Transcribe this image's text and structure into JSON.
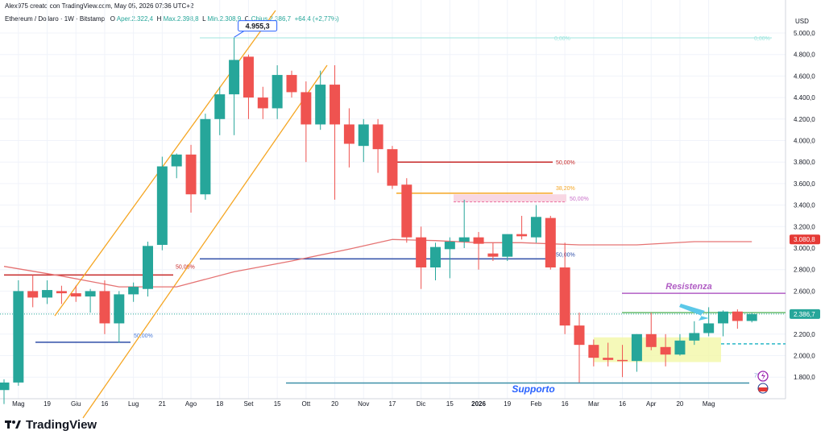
{
  "header": {
    "caption": "Alex975 creato con TradingView.com, May 05, 2026 07:36 UTC+2",
    "symbol": "Ethereum / Dollaro · 1W · Bitstamp",
    "ohlc": {
      "o_key": "O",
      "o_val": "Aper.2.322,4",
      "h_key": "H",
      "h_val": "Max.2.398,8",
      "l_key": "L",
      "l_val": "Min.2.308,9",
      "c_key": "C",
      "c_val": "Chius.2.386,7",
      "change": "+64,4 (+2,77%)"
    }
  },
  "footer": {
    "brand": "TradingView"
  },
  "colors": {
    "up": "#26a69a",
    "down": "#ef5350",
    "channel": "#f5a623",
    "ma": "#e57373",
    "support": "#3d8fa8",
    "resistance": "#b05dc4",
    "blue_line": "#2f4ea8",
    "green_line": "#66bb6a"
  },
  "chart_data": {
    "type": "candlestick",
    "currency": "USD",
    "y_ticks": [
      "1.800,0",
      "2.000,0",
      "2.200,0",
      "2.400,0",
      "2.600,0",
      "2.800,0",
      "3.000,0",
      "3.200,0",
      "3.400,0",
      "3.600,0",
      "3.800,0",
      "4.000,0",
      "4.200,0",
      "4.400,0",
      "4.600,0",
      "4.800,0",
      "5.000,0"
    ],
    "y_tick_values": [
      1800,
      2000,
      2200,
      2400,
      2600,
      2800,
      3000,
      3200,
      3400,
      3600,
      3800,
      4000,
      4200,
      4400,
      4600,
      4800,
      5000
    ],
    "x_ticks": [
      "Mag",
      "19",
      "Giu",
      "16",
      "Lug",
      "21",
      "Ago",
      "18",
      "Set",
      "15",
      "Ott",
      "20",
      "Nov",
      "17",
      "Dic",
      "15",
      "2026",
      "19",
      "Feb",
      "16",
      "Mar",
      "16",
      "Apr",
      "20",
      "Mag"
    ],
    "x_tick_weeks": [
      1,
      3,
      5,
      7,
      9,
      11,
      13,
      15,
      17,
      19,
      21,
      23,
      25,
      27,
      29,
      31,
      33,
      35,
      37,
      39,
      41,
      43,
      45,
      47,
      49
    ],
    "candles": [
      {
        "o": 1680,
        "h": 1780,
        "l": 1550,
        "c": 1750
      },
      {
        "o": 1750,
        "h": 2700,
        "l": 1720,
        "c": 2600
      },
      {
        "o": 2600,
        "h": 2750,
        "l": 2450,
        "c": 2540
      },
      {
        "o": 2540,
        "h": 2700,
        "l": 2480,
        "c": 2610
      },
      {
        "o": 2600,
        "h": 2650,
        "l": 2480,
        "c": 2580
      },
      {
        "o": 2580,
        "h": 2650,
        "l": 2500,
        "c": 2550
      },
      {
        "o": 2550,
        "h": 2620,
        "l": 2400,
        "c": 2600
      },
      {
        "o": 2600,
        "h": 2700,
        "l": 2200,
        "c": 2300
      },
      {
        "o": 2300,
        "h": 2600,
        "l": 2120,
        "c": 2570
      },
      {
        "o": 2570,
        "h": 2680,
        "l": 2500,
        "c": 2640
      },
      {
        "o": 2620,
        "h": 3060,
        "l": 2550,
        "c": 3020
      },
      {
        "o": 3030,
        "h": 3850,
        "l": 2980,
        "c": 3760
      },
      {
        "o": 3760,
        "h": 3880,
        "l": 3650,
        "c": 3870
      },
      {
        "o": 3870,
        "h": 3960,
        "l": 3330,
        "c": 3500
      },
      {
        "o": 3500,
        "h": 4250,
        "l": 3450,
        "c": 4200
      },
      {
        "o": 4200,
        "h": 4500,
        "l": 4050,
        "c": 4430
      },
      {
        "o": 4430,
        "h": 4955.3,
        "l": 4050,
        "c": 4750
      },
      {
        "o": 4780,
        "h": 4800,
        "l": 4200,
        "c": 4400
      },
      {
        "o": 4400,
        "h": 4500,
        "l": 4200,
        "c": 4300
      },
      {
        "o": 4300,
        "h": 4700,
        "l": 4200,
        "c": 4610
      },
      {
        "o": 4610,
        "h": 4650,
        "l": 4400,
        "c": 4450
      },
      {
        "o": 4450,
        "h": 4550,
        "l": 3800,
        "c": 4150
      },
      {
        "o": 4150,
        "h": 4650,
        "l": 4100,
        "c": 4520
      },
      {
        "o": 4520,
        "h": 4700,
        "l": 3450,
        "c": 4150
      },
      {
        "o": 4150,
        "h": 4300,
        "l": 3750,
        "c": 3970
      },
      {
        "o": 3950,
        "h": 4200,
        "l": 3800,
        "c": 4150
      },
      {
        "o": 4150,
        "h": 4200,
        "l": 3700,
        "c": 3920
      },
      {
        "o": 3920,
        "h": 3950,
        "l": 3550,
        "c": 3580
      },
      {
        "o": 3590,
        "h": 3650,
        "l": 3050,
        "c": 3100
      },
      {
        "o": 3100,
        "h": 3200,
        "l": 2620,
        "c": 2820
      },
      {
        "o": 2820,
        "h": 3050,
        "l": 2700,
        "c": 3010
      },
      {
        "o": 2990,
        "h": 3100,
        "l": 2720,
        "c": 3060
      },
      {
        "o": 3060,
        "h": 3450,
        "l": 3000,
        "c": 3100
      },
      {
        "o": 3100,
        "h": 3150,
        "l": 2800,
        "c": 3040
      },
      {
        "o": 2950,
        "h": 3050,
        "l": 2880,
        "c": 2920
      },
      {
        "o": 2920,
        "h": 3120,
        "l": 2880,
        "c": 3130
      },
      {
        "o": 3130,
        "h": 3300,
        "l": 3080,
        "c": 3110
      },
      {
        "o": 3100,
        "h": 3400,
        "l": 3050,
        "c": 3290
      },
      {
        "o": 3280,
        "h": 3300,
        "l": 2800,
        "c": 2820
      },
      {
        "o": 2820,
        "h": 3050,
        "l": 2200,
        "c": 2280
      },
      {
        "o": 2280,
        "h": 2400,
        "l": 1750,
        "c": 2100
      },
      {
        "o": 2100,
        "h": 2150,
        "l": 1900,
        "c": 1980
      },
      {
        "o": 1980,
        "h": 2120,
        "l": 1900,
        "c": 1960
      },
      {
        "o": 1960,
        "h": 2100,
        "l": 1800,
        "c": 1950
      },
      {
        "o": 1950,
        "h": 2200,
        "l": 1850,
        "c": 2200
      },
      {
        "o": 2200,
        "h": 2400,
        "l": 2050,
        "c": 2080
      },
      {
        "o": 2080,
        "h": 2200,
        "l": 1900,
        "c": 2010
      },
      {
        "o": 2010,
        "h": 2200,
        "l": 2000,
        "c": 2140
      },
      {
        "o": 2140,
        "h": 2320,
        "l": 2100,
        "c": 2210
      },
      {
        "o": 2210,
        "h": 2450,
        "l": 2180,
        "c": 2300
      },
      {
        "o": 2300,
        "h": 2420,
        "l": 2180,
        "c": 2410
      },
      {
        "o": 2410,
        "h": 2430,
        "l": 2250,
        "c": 2322.4
      },
      {
        "o": 2322.4,
        "h": 2398.8,
        "l": 2308.9,
        "c": 2386.7
      }
    ],
    "moving_average": [
      [
        0,
        2830
      ],
      [
        4,
        2740
      ],
      [
        8,
        2640
      ],
      [
        12,
        2640
      ],
      [
        16,
        2780
      ],
      [
        20,
        2880
      ],
      [
        24,
        2990
      ],
      [
        27,
        3080
      ],
      [
        30,
        3070
      ],
      [
        33,
        3050
      ],
      [
        36,
        3050
      ],
      [
        40,
        3030
      ],
      [
        44,
        3030
      ],
      [
        48,
        3060
      ],
      [
        52,
        3060
      ]
    ],
    "annotations": {
      "ath_label": "4.955,3",
      "current_price_label": "2.386,7",
      "ma_price_label": "3.080,8",
      "resistenza": "Resistenza",
      "supporto": "Supporto",
      "fib_50_red": "50,00%",
      "fib_382": "38,20%",
      "fib_50_pink": "50,00%",
      "fib_50_blue_mid": "50,00%",
      "fib_50_red_left": "50,00%",
      "fib_50_blue_left": "50,00%",
      "fib_top_left": "0,00%",
      "fib_top_right": "0,00%",
      "fib_bottom": "75%"
    }
  }
}
